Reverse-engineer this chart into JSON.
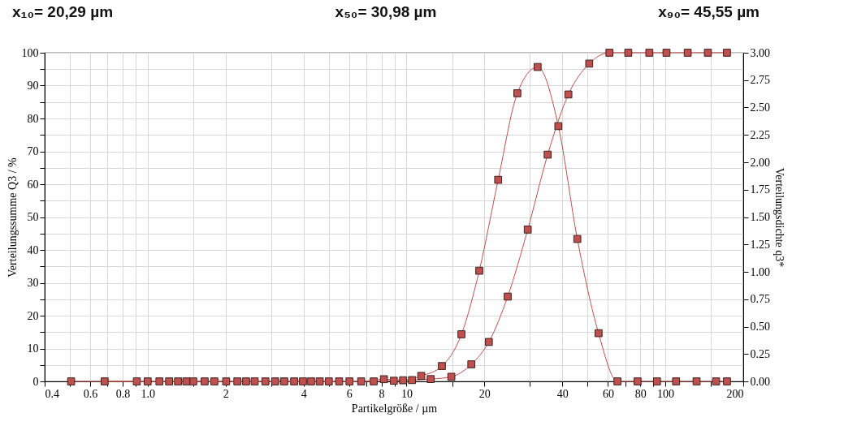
{
  "chart_data": {
    "type": "line",
    "xlabel": "Partikelgröße / µm",
    "ylabel": "Verteilungssumme Q3 / %",
    "y2label": "Verteilungsdichte q3*",
    "annotations": [
      "x₁₀= 20,29 µm",
      "x₅₀= 30,98 µm",
      "x₉₀= 45,55 µm"
    ],
    "log": "x",
    "grid": true,
    "marker": "square",
    "xlim": [
      0.4,
      200
    ],
    "xticks": [
      0.4,
      {
        "value": 0.5,
        "label": null
      },
      0.6,
      {
        "value": 0.7,
        "label": null
      },
      0.8,
      {
        "value": 0.9,
        "label": null
      },
      {
        "value": 1,
        "label": "1.0"
      },
      {
        "value": 1.5,
        "label": null
      },
      2,
      {
        "value": 3,
        "label": null
      },
      4,
      {
        "value": 5,
        "label": null
      },
      6,
      {
        "value": 7,
        "label": null
      },
      8,
      {
        "value": 9,
        "label": null
      },
      10,
      {
        "value": 15,
        "label": null
      },
      20,
      {
        "value": 30,
        "label": null
      },
      40,
      {
        "value": 50,
        "label": null
      },
      60,
      {
        "value": 70,
        "label": null
      },
      80,
      {
        "value": 90,
        "label": null
      },
      100,
      {
        "value": 150,
        "label": null
      },
      200
    ],
    "ylim": [
      0,
      100
    ],
    "yticks": [
      0,
      {
        "value": 5,
        "label": null
      },
      10,
      {
        "value": 15,
        "label": null
      },
      20,
      {
        "value": 25,
        "label": null
      },
      30,
      {
        "value": 35,
        "label": null
      },
      40,
      {
        "value": 45,
        "label": null
      },
      50,
      {
        "value": 55,
        "label": null
      },
      60,
      {
        "value": 65,
        "label": null
      },
      70,
      {
        "value": 75,
        "label": null
      },
      80,
      {
        "value": 85,
        "label": null
      },
      90,
      {
        "value": 95,
        "label": null
      },
      100
    ],
    "y2lim": [
      0,
      3
    ],
    "y2ticks": [
      {
        "value": 0,
        "label": "0.00"
      },
      0.25,
      {
        "value": 0.5,
        "label": "0.50"
      },
      0.75,
      {
        "value": 1,
        "label": "1.00"
      },
      1.25,
      {
        "value": 1.5,
        "label": "1.50"
      },
      1.75,
      {
        "value": 2,
        "label": "2.00"
      },
      2.25,
      {
        "value": 2.5,
        "label": "2.50"
      },
      2.75,
      {
        "value": 3,
        "label": "3.00"
      }
    ],
    "series": [
      {
        "color": "#c0504d",
        "x": [
          0.506,
          0.908,
          1.11,
          1.31,
          1.5,
          1.81,
          2.22,
          2.59,
          3.11,
          3.68,
          4.28,
          5.01,
          6.02,
          7.47,
          8.93,
          10.5,
          12.4,
          14.9,
          17.8,
          20.8,
          24.6,
          29.4,
          35.1,
          42.2,
          50.8,
          60.8,
          71.9,
          86.7,
          101,
          122,
          146,
          173
        ],
        "values": [
          0,
          0,
          0,
          0,
          0,
          0,
          0,
          0,
          0,
          0,
          0,
          0,
          0,
          0,
          0.2,
          0.4,
          0.7,
          1.4,
          5.2,
          12,
          25.8,
          46.2,
          69,
          87.3,
          96.7,
          100,
          100,
          100,
          100,
          100,
          100,
          100
        ]
      },
      {
        "color": "#c0504d",
        "axis": "y2",
        "x": [
          0.682,
          1,
          1.21,
          1.41,
          1.66,
          2.01,
          2.4,
          2.85,
          3.37,
          3.98,
          4.62,
          5.49,
          6.68,
          8.18,
          9.7,
          11.4,
          13.7,
          16.3,
          19.1,
          22.6,
          26.8,
          32.1,
          38.6,
          45.7,
          55.2,
          65.3,
          78.1,
          92.8,
          110,
          132,
          157,
          173
        ],
        "values": [
          0,
          0,
          0,
          0,
          0,
          0,
          0,
          0,
          0,
          0,
          0,
          0,
          0,
          0.02,
          0.01,
          0.05,
          0.14,
          0.43,
          1.01,
          1.84,
          2.63,
          2.87,
          2.33,
          1.3,
          0.44,
          0,
          0,
          0,
          0,
          0,
          0,
          0
        ]
      }
    ]
  }
}
